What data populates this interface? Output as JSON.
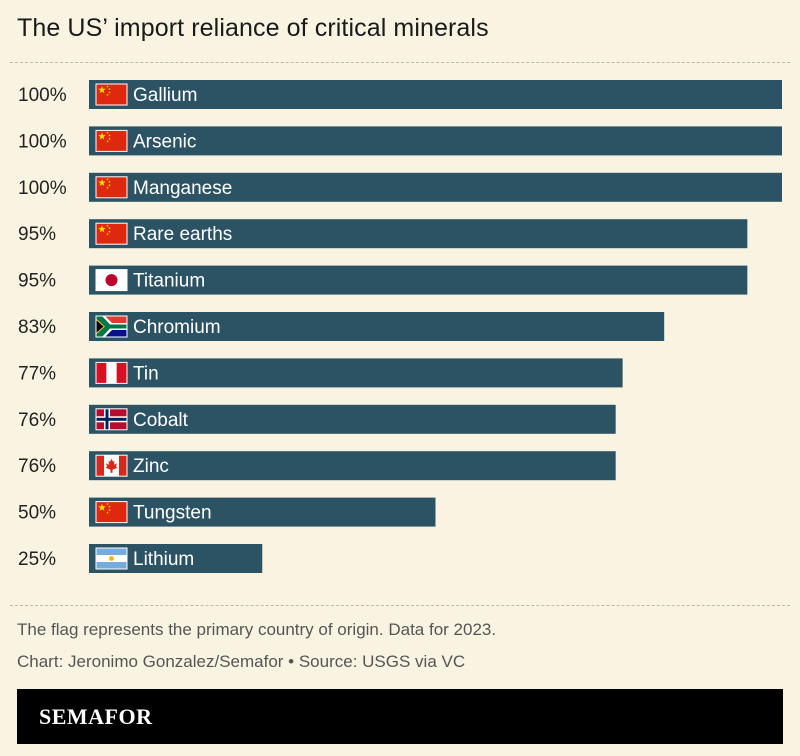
{
  "header": {
    "title": "The US’ import reliance of critical minerals"
  },
  "chart_data": {
    "type": "bar",
    "orientation": "horizontal",
    "categories": [
      "Gallium",
      "Arsenic",
      "Manganese",
      "Rare earths",
      "Titanium",
      "Chromium",
      "Tin",
      "Cobalt",
      "Zinc",
      "Tungsten",
      "Lithium"
    ],
    "values": [
      100,
      100,
      100,
      95,
      95,
      83,
      77,
      76,
      76,
      50,
      25
    ],
    "value_labels": [
      "100%",
      "100%",
      "100%",
      "95%",
      "95%",
      "83%",
      "77%",
      "76%",
      "76%",
      "50%",
      "25%"
    ],
    "flags": [
      "china-flag",
      "china-flag",
      "china-flag",
      "china-flag",
      "japan-flag",
      "south-africa-flag",
      "peru-flag",
      "norway-flag",
      "canada-flag",
      "china-flag",
      "argentina-flag"
    ],
    "xlim": [
      0,
      100
    ],
    "bar_color": "#2c5364",
    "grid": false
  },
  "notes": {
    "flag_note": "The flag represents the primary country of origin. Data for 2023.",
    "credit": "Chart: Jeronimo Gonzalez/Semafor • Source: USGS via VC"
  },
  "footer": {
    "brand": "SEMAFOR"
  }
}
